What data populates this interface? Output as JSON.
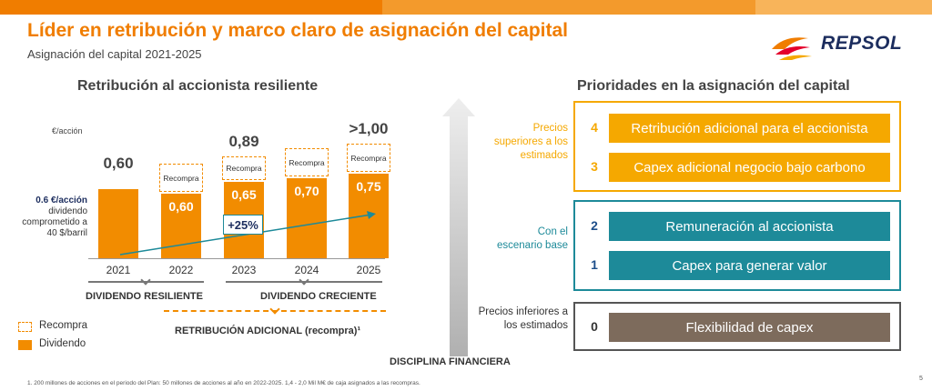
{
  "header": {
    "title": "Líder en retribución y marco claro de asignación del capital",
    "subtitle": "Asignación del capital 2021-2025",
    "logo_text": "REPSOL"
  },
  "left": {
    "section_title": "Retribución al accionista resiliente",
    "unit": "€/acción",
    "note_bold": "0.6 €/acción",
    "note_rest": "dividendo comprometido a 40 $/barril",
    "growth_label": "+25%",
    "recompra_label": "Recompra",
    "years": [
      {
        "year": "2021",
        "dividend": "",
        "top": "0,60",
        "recompra": false
      },
      {
        "year": "2022",
        "dividend": "0,60",
        "top": "",
        "recompra": true
      },
      {
        "year": "2023",
        "dividend": "0,65",
        "top": "0,89",
        "recompra": true
      },
      {
        "year": "2024",
        "dividend": "0,70",
        "top": "",
        "recompra": true
      },
      {
        "year": "2025",
        "dividend": "0,75",
        "top": ">1,00",
        "recompra": true
      }
    ],
    "bracket_resiliente": "DIVIDENDO RESILIENTE",
    "bracket_creciente": "DIVIDENDO CRECIENTE",
    "bracket_adicional": "RETRIBUCIÓN ADICIONAL (recompra)¹",
    "legend": {
      "recompra": "Recompra",
      "dividendo": "Dividendo"
    }
  },
  "center": {
    "discipline": "DISCIPLINA FINANCIERA"
  },
  "right": {
    "section_title": "Prioridades en la asignación del capital",
    "groups": [
      {
        "label": "Precios superiores a los estimados",
        "color": "#f5a800",
        "items": [
          {
            "num": "4",
            "text": "Retribución adicional para el accionista"
          },
          {
            "num": "3",
            "text": "Capex adicional negocio bajo carbono"
          }
        ]
      },
      {
        "label": "Con el escenario base",
        "color": "#1d8a99",
        "items": [
          {
            "num": "2",
            "text": "Remuneración al accionista"
          },
          {
            "num": "1",
            "text": "Capex para generar valor"
          }
        ]
      },
      {
        "label": "Precios inferiores a los estimados",
        "color": "#7d6b5c",
        "items": [
          {
            "num": "0",
            "text": "Flexibilidad de capex"
          }
        ]
      }
    ]
  },
  "footer": {
    "footnote": "1. 200 millones de acciones en el periodo del Plan: 50 millones de acciones al año en 2022-2025. 1,4 - 2,0 Mil M€ de caja asignados a las recompras.",
    "page": "5"
  },
  "colors": {
    "orange": "#f28c00",
    "title_orange": "#f07d00",
    "teal": "#1d8a99",
    "gold": "#f5a800",
    "brown": "#7d6b5c",
    "navy": "#1c2d5e"
  }
}
